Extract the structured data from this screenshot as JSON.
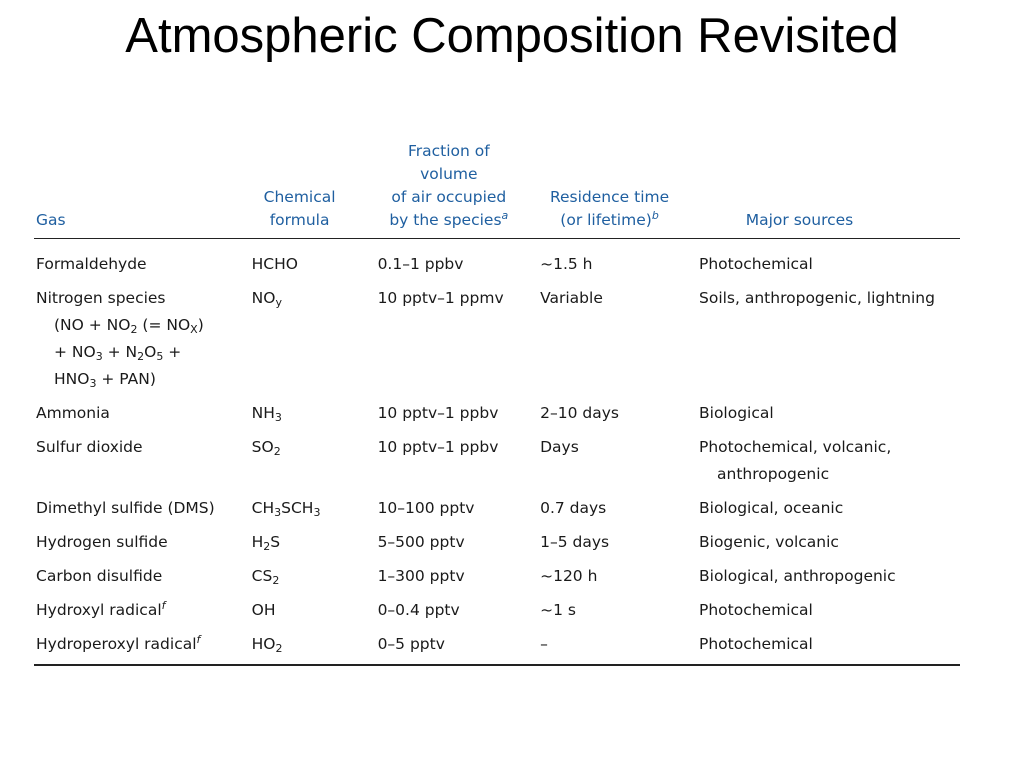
{
  "title": "Atmospheric Composition Revisited",
  "table": {
    "headers": {
      "gas": "Gas",
      "formula_l1": "Chemical",
      "formula_l2": "formula",
      "fraction_l1": "Fraction of volume",
      "fraction_l2": "of air occupied",
      "fraction_l3": "by the species",
      "fraction_note": "a",
      "residence_l1": "Residence time",
      "residence_l2": "(or lifetime)",
      "residence_note": "b",
      "sources": "Major sources"
    },
    "rows": [
      {
        "gas": "Formaldehyde",
        "fraction": "0.1–1 ppbv",
        "residence": "~1.5 h",
        "sources": "Photochemical"
      },
      {
        "gas": "Nitrogen species",
        "gas_l2a": "(NO + NO",
        "gas_l2b": "2",
        "gas_l2c": " (= NO",
        "gas_l2d": "X",
        "gas_l2e": ")",
        "gas_l3a": "+ NO",
        "gas_l3b": "3",
        "gas_l3c": " + N",
        "gas_l3d": "2",
        "gas_l3e": "O",
        "gas_l3f": "5",
        "gas_l3g": " +",
        "gas_l4a": "HNO",
        "gas_l4b": "3",
        "gas_l4c": " + PAN)",
        "fraction": "10 pptv–1 ppmv",
        "residence": "Variable",
        "sources": "Soils, anthropogenic, lightning"
      },
      {
        "gas": "Ammonia",
        "fraction": "10 pptv–1 ppbv",
        "residence": "2–10 days",
        "sources": "Biological"
      },
      {
        "gas": "Sulfur dioxide",
        "fraction": "10 pptv–1 ppbv",
        "residence": "Days",
        "sources": "Photochemical, volcanic,",
        "sources_l2": "anthropogenic"
      },
      {
        "gas": "Dimethyl sulfide (DMS)",
        "fraction": "10–100 pptv",
        "residence": "0.7 days",
        "sources": "Biological, oceanic"
      },
      {
        "gas": "Hydrogen sulfide",
        "fraction": "5–500 pptv",
        "residence": "1–5 days",
        "sources": "Biogenic, volcanic"
      },
      {
        "gas": "Carbon disulfide",
        "fraction": "1–300 pptv",
        "residence": "~120 h",
        "sources": "Biological, anthropogenic"
      },
      {
        "gas": "Hydroxyl radical",
        "gas_note": "f",
        "fraction": "0–0.4 pptv",
        "residence": "~1 s",
        "sources": "Photochemical"
      },
      {
        "gas": "Hydroperoxyl radical",
        "gas_note": "f",
        "fraction": "0–5 pptv",
        "residence": "–",
        "sources": "Photochemical"
      }
    ],
    "formulas": {
      "r0": "HCHO",
      "r1a": "NO",
      "r1b": "y",
      "r2a": "NH",
      "r2b": "3",
      "r3a": "SO",
      "r3b": "2",
      "r4a": "CH",
      "r4b": "3",
      "r4c": "SCH",
      "r4d": "3",
      "r5a": "H",
      "r5b": "2",
      "r5c": "S",
      "r6a": "CS",
      "r6b": "2",
      "r7": "OH",
      "r8a": "HO",
      "r8b": "2"
    }
  }
}
